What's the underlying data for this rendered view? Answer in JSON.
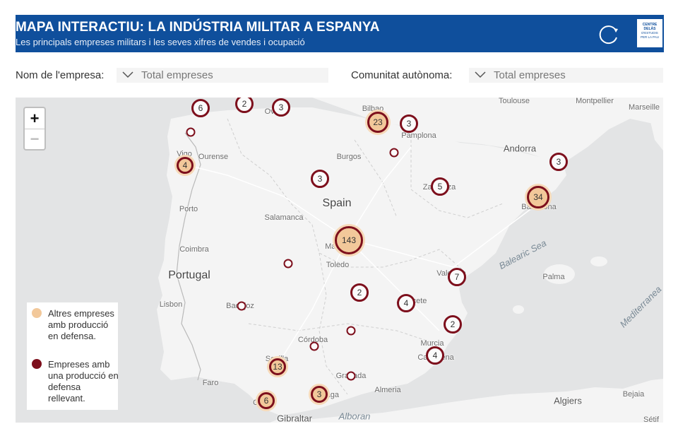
{
  "header": {
    "title": "MAPA INTERACTIU: LA INDÚSTRIA MILITAR A ESPANYA",
    "subtitle": "Les principals empreses militars i les seves xifres de vendes i ocupació",
    "logo_lines": [
      "CENTRE DELÀS",
      "D'ESTUDIS",
      "PER LA PAU"
    ]
  },
  "filters": {
    "company_label": "Nom de l'empresa:",
    "company_value": "Total empreses",
    "region_label": "Comunitat autònoma:",
    "region_value": "Total empreses"
  },
  "zoom": {
    "in": "+",
    "out": "−"
  },
  "legend": {
    "items": [
      {
        "label": "Altres empreses amb producció en defensa.",
        "color": "#f2c89a"
      },
      {
        "label": "Empreses amb una producció en defensa rellevant.",
        "color": "#7d0f1c"
      }
    ]
  },
  "places": [
    {
      "name": "Bilbao"
    },
    {
      "name": "Toulouse"
    },
    {
      "name": "Montpellier"
    },
    {
      "name": "Marseille"
    },
    {
      "name": "Oviedo"
    },
    {
      "name": "Pamplona"
    },
    {
      "name": "Vigo"
    },
    {
      "name": "Ourense"
    },
    {
      "name": "Burgos"
    },
    {
      "name": "Andorra"
    },
    {
      "name": "Zaragoza"
    },
    {
      "name": "Spain"
    },
    {
      "name": "Barcelona"
    },
    {
      "name": "Porto"
    },
    {
      "name": "Salamanca"
    },
    {
      "name": "Madrid"
    },
    {
      "name": "Coimbra"
    },
    {
      "name": "Toledo"
    },
    {
      "name": "Balearic Sea"
    },
    {
      "name": "Portugal"
    },
    {
      "name": "Valencia"
    },
    {
      "name": "Palma"
    },
    {
      "name": "Lisbon"
    },
    {
      "name": "Badajoz"
    },
    {
      "name": "Albacete"
    },
    {
      "name": "Mediterranea"
    },
    {
      "name": "Córdoba"
    },
    {
      "name": "Murcia"
    },
    {
      "name": "Sevilla"
    },
    {
      "name": "Cartagena"
    },
    {
      "name": "Faro"
    },
    {
      "name": "Granada"
    },
    {
      "name": "Almeria"
    },
    {
      "name": "Málaga"
    },
    {
      "name": "Cádiz"
    },
    {
      "name": "Bejaia"
    },
    {
      "name": "Algiers"
    },
    {
      "name": "Alboran"
    },
    {
      "name": "Gibraltar"
    },
    {
      "name": "Sétif"
    }
  ],
  "markers": [
    {
      "label": "6"
    },
    {
      "label": "2"
    },
    {
      "label": "3"
    },
    {
      "label": ""
    },
    {
      "label": "23"
    },
    {
      "label": "3"
    },
    {
      "label": ""
    },
    {
      "label": "4"
    },
    {
      "label": "3"
    },
    {
      "label": "5"
    },
    {
      "label": "3"
    },
    {
      "label": "34"
    },
    {
      "label": "143"
    },
    {
      "label": ""
    },
    {
      "label": "7"
    },
    {
      "label": "2"
    },
    {
      "label": ""
    },
    {
      "label": "4"
    },
    {
      "label": "2"
    },
    {
      "label": ""
    },
    {
      "label": ""
    },
    {
      "label": "13"
    },
    {
      "label": "4"
    },
    {
      "label": ""
    },
    {
      "label": "6"
    },
    {
      "label": "3"
    }
  ]
}
